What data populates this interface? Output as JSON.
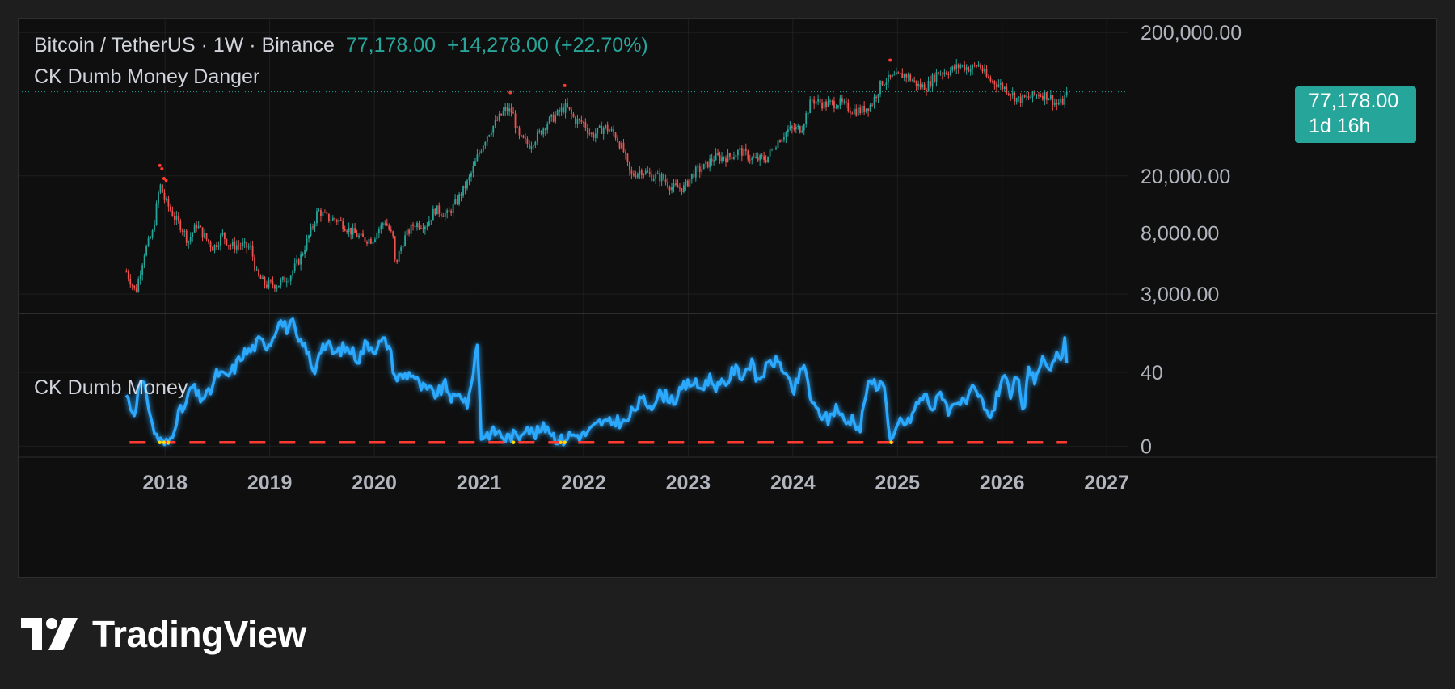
{
  "legend": {
    "symbol": "Bitcoin / TetherUS · 1W · Binance",
    "price": "77,178.00",
    "change": "+14,278.00 (+22.70%)",
    "danger_indicator": "CK Dumb Money Danger",
    "oscillator": "CK Dumb Money"
  },
  "price_badge": {
    "price": "77,178.00",
    "countdown": "1d 16h"
  },
  "brand": {
    "name": "TradingView"
  },
  "colors": {
    "background": "#0f0f0f",
    "up_candle": "#26a69a",
    "down_candle": "#ef5350",
    "oscillator_line": "#2aa9ff",
    "danger_line": "#ff3b30",
    "danger_dot": "#ffe000"
  },
  "chart_data": [
    {
      "type": "candlestick",
      "title": "Bitcoin / TetherUS · 1W · Binance",
      "scale": "log",
      "ylim": [
        2200,
        250000
      ],
      "xlim": [
        2016.6,
        2027.2
      ],
      "y_tick_labels": [
        "200,000.00",
        "20,000.00",
        "8,000.00",
        "3,000.00"
      ],
      "y_ticks": [
        200000,
        20000,
        8000,
        3000
      ],
      "x_tick_labels": [
        "2018",
        "2019",
        "2020",
        "2021",
        "2022",
        "2023",
        "2024",
        "2025",
        "2026",
        "2027"
      ],
      "x_ticks": [
        2018,
        2019,
        2020,
        2021,
        2022,
        2023,
        2024,
        2025,
        2026,
        2027
      ],
      "last_price": 77178,
      "price_path": [
        [
          2017.63,
          4300
        ],
        [
          2017.72,
          3100
        ],
        [
          2017.8,
          5800
        ],
        [
          2017.88,
          8000
        ],
        [
          2017.95,
          17500
        ],
        [
          2018.0,
          13500
        ],
        [
          2018.1,
          10000
        ],
        [
          2018.16,
          8800
        ],
        [
          2018.22,
          7000
        ],
        [
          2018.3,
          9200
        ],
        [
          2018.38,
          7500
        ],
        [
          2018.46,
          6300
        ],
        [
          2018.55,
          7800
        ],
        [
          2018.62,
          6500
        ],
        [
          2018.7,
          6600
        ],
        [
          2018.82,
          6300
        ],
        [
          2018.88,
          4000
        ],
        [
          2018.96,
          3500
        ],
        [
          2019.08,
          3500
        ],
        [
          2019.2,
          4100
        ],
        [
          2019.3,
          5500
        ],
        [
          2019.4,
          8500
        ],
        [
          2019.46,
          11500
        ],
        [
          2019.55,
          10200
        ],
        [
          2019.66,
          9800
        ],
        [
          2019.78,
          8200
        ],
        [
          2019.88,
          7300
        ],
        [
          2019.98,
          7200
        ],
        [
          2020.1,
          9800
        ],
        [
          2020.18,
          7300
        ],
        [
          2020.2,
          4800
        ],
        [
          2020.28,
          7200
        ],
        [
          2020.38,
          9300
        ],
        [
          2020.5,
          9200
        ],
        [
          2020.58,
          11700
        ],
        [
          2020.7,
          10700
        ],
        [
          2020.8,
          13800
        ],
        [
          2020.9,
          18500
        ],
        [
          2021.0,
          29000
        ],
        [
          2021.08,
          39000
        ],
        [
          2021.16,
          47000
        ],
        [
          2021.25,
          58000
        ],
        [
          2021.32,
          56000
        ],
        [
          2021.38,
          37000
        ],
        [
          2021.48,
          33000
        ],
        [
          2021.56,
          38000
        ],
        [
          2021.65,
          47000
        ],
        [
          2021.75,
          54000
        ],
        [
          2021.83,
          61000
        ],
        [
          2021.92,
          49000
        ],
        [
          2022.0,
          47000
        ],
        [
          2022.08,
          38000
        ],
        [
          2022.2,
          44000
        ],
        [
          2022.3,
          39000
        ],
        [
          2022.38,
          30000
        ],
        [
          2022.45,
          20000
        ],
        [
          2022.55,
          22000
        ],
        [
          2022.65,
          20000
        ],
        [
          2022.75,
          19500
        ],
        [
          2022.85,
          16500
        ],
        [
          2022.96,
          16500
        ],
        [
          2023.05,
          21000
        ],
        [
          2023.15,
          23000
        ],
        [
          2023.25,
          27000
        ],
        [
          2023.38,
          27000
        ],
        [
          2023.5,
          30000
        ],
        [
          2023.62,
          26000
        ],
        [
          2023.75,
          26500
        ],
        [
          2023.85,
          35000
        ],
        [
          2023.96,
          42000
        ],
        [
          2024.08,
          43000
        ],
        [
          2024.18,
          68000
        ],
        [
          2024.3,
          63000
        ],
        [
          2024.45,
          65000
        ],
        [
          2024.55,
          58000
        ],
        [
          2024.65,
          57000
        ],
        [
          2024.75,
          63000
        ],
        [
          2024.85,
          90000
        ],
        [
          2024.96,
          97000
        ],
        [
          2025.08,
          102000
        ],
        [
          2025.2,
          85000
        ],
        [
          2025.28,
          84000
        ],
        [
          2025.38,
          105000
        ],
        [
          2025.5,
          108000
        ],
        [
          2025.6,
          118000
        ],
        [
          2025.7,
          112000
        ],
        [
          2025.78,
          120000
        ],
        [
          2025.86,
          95000
        ],
        [
          2025.96,
          88000
        ],
        [
          2026.05,
          80000
        ],
        [
          2026.15,
          68000
        ],
        [
          2026.25,
          70000
        ],
        [
          2026.35,
          75000
        ],
        [
          2026.45,
          72000
        ],
        [
          2026.52,
          63000
        ],
        [
          2026.58,
          66000
        ],
        [
          2026.62,
          77178
        ]
      ],
      "danger_markers_x": [
        2017.95,
        2017.97,
        2017.99,
        2018.01,
        2021.3,
        2021.82,
        2024.93
      ]
    },
    {
      "type": "line",
      "title": "CK Dumb Money",
      "ylim": [
        -6,
        72
      ],
      "y_tick_labels": [
        "40",
        "0"
      ],
      "y_ticks": [
        40,
        0
      ],
      "danger_level": 2,
      "series": [
        {
          "values_path": [
            [
              2017.63,
              28
            ],
            [
              2017.7,
              17
            ],
            [
              2017.76,
              34
            ],
            [
              2017.82,
              30
            ],
            [
              2017.88,
              10
            ],
            [
              2017.93,
              5
            ],
            [
              2017.98,
              1
            ],
            [
              2018.04,
              2
            ],
            [
              2018.12,
              17
            ],
            [
              2018.2,
              22
            ],
            [
              2018.25,
              33
            ],
            [
              2018.33,
              26
            ],
            [
              2018.42,
              28
            ],
            [
              2018.5,
              40
            ],
            [
              2018.58,
              37
            ],
            [
              2018.66,
              42
            ],
            [
              2018.74,
              50
            ],
            [
              2018.82,
              52
            ],
            [
              2018.9,
              57
            ],
            [
              2018.98,
              55
            ],
            [
              2019.04,
              60
            ],
            [
              2019.08,
              69
            ],
            [
              2019.16,
              64
            ],
            [
              2019.22,
              66
            ],
            [
              2019.28,
              55
            ],
            [
              2019.35,
              54
            ],
            [
              2019.42,
              38
            ],
            [
              2019.48,
              54
            ],
            [
              2019.55,
              55
            ],
            [
              2019.62,
              50
            ],
            [
              2019.7,
              53
            ],
            [
              2019.78,
              52
            ],
            [
              2019.85,
              47
            ],
            [
              2019.92,
              56
            ],
            [
              2020.0,
              53
            ],
            [
              2020.08,
              57
            ],
            [
              2020.14,
              55
            ],
            [
              2020.2,
              37
            ],
            [
              2020.28,
              38
            ],
            [
              2020.36,
              40
            ],
            [
              2020.44,
              32
            ],
            [
              2020.52,
              30
            ],
            [
              2020.6,
              28
            ],
            [
              2020.68,
              33
            ],
            [
              2020.75,
              25
            ],
            [
              2020.83,
              28
            ],
            [
              2020.9,
              22
            ],
            [
              2020.96,
              48
            ],
            [
              2020.99,
              56
            ],
            [
              2021.02,
              5
            ],
            [
              2021.1,
              7
            ],
            [
              2021.18,
              8
            ],
            [
              2021.25,
              4
            ],
            [
              2021.32,
              6
            ],
            [
              2021.38,
              5
            ],
            [
              2021.45,
              12
            ],
            [
              2021.52,
              6
            ],
            [
              2021.6,
              9
            ],
            [
              2021.66,
              11
            ],
            [
              2021.72,
              5
            ],
            [
              2021.8,
              3
            ],
            [
              2021.86,
              6
            ],
            [
              2021.93,
              6
            ],
            [
              2022.0,
              6
            ],
            [
              2022.08,
              9
            ],
            [
              2022.16,
              13
            ],
            [
              2022.24,
              12
            ],
            [
              2022.32,
              14
            ],
            [
              2022.4,
              12
            ],
            [
              2022.48,
              20
            ],
            [
              2022.56,
              25
            ],
            [
              2022.64,
              22
            ],
            [
              2022.72,
              28
            ],
            [
              2022.8,
              27
            ],
            [
              2022.88,
              25
            ],
            [
              2022.96,
              32
            ],
            [
              2023.04,
              35
            ],
            [
              2023.12,
              31
            ],
            [
              2023.2,
              37
            ],
            [
              2023.28,
              32
            ],
            [
              2023.36,
              34
            ],
            [
              2023.44,
              42
            ],
            [
              2023.52,
              38
            ],
            [
              2023.6,
              46
            ],
            [
              2023.66,
              35
            ],
            [
              2023.72,
              40
            ],
            [
              2023.8,
              46
            ],
            [
              2023.88,
              45
            ],
            [
              2023.94,
              38
            ],
            [
              2024.0,
              28
            ],
            [
              2024.06,
              38
            ],
            [
              2024.12,
              44
            ],
            [
              2024.18,
              22
            ],
            [
              2024.26,
              18
            ],
            [
              2024.34,
              14
            ],
            [
              2024.42,
              22
            ],
            [
              2024.5,
              12
            ],
            [
              2024.58,
              16
            ],
            [
              2024.64,
              8
            ],
            [
              2024.7,
              30
            ],
            [
              2024.76,
              35
            ],
            [
              2024.82,
              33
            ],
            [
              2024.88,
              35
            ],
            [
              2024.92,
              4
            ],
            [
              2024.96,
              2
            ],
            [
              2025.02,
              14
            ],
            [
              2025.1,
              12
            ],
            [
              2025.18,
              22
            ],
            [
              2025.26,
              28
            ],
            [
              2025.34,
              20
            ],
            [
              2025.42,
              30
            ],
            [
              2025.5,
              18
            ],
            [
              2025.56,
              26
            ],
            [
              2025.64,
              22
            ],
            [
              2025.72,
              30
            ],
            [
              2025.8,
              25
            ],
            [
              2025.86,
              16
            ],
            [
              2025.92,
              20
            ],
            [
              2025.98,
              33
            ],
            [
              2026.03,
              42
            ],
            [
              2026.08,
              22
            ],
            [
              2026.14,
              40
            ],
            [
              2026.2,
              16
            ],
            [
              2026.26,
              44
            ],
            [
              2026.32,
              35
            ],
            [
              2026.38,
              47
            ],
            [
              2026.44,
              38
            ],
            [
              2026.5,
              50
            ],
            [
              2026.56,
              44
            ],
            [
              2026.6,
              56
            ],
            [
              2026.62,
              42
            ]
          ]
        }
      ],
      "danger_markers_x": [
        2017.95,
        2017.99,
        2018.03,
        2021.33,
        2021.78,
        2021.82,
        2024.94
      ]
    }
  ]
}
